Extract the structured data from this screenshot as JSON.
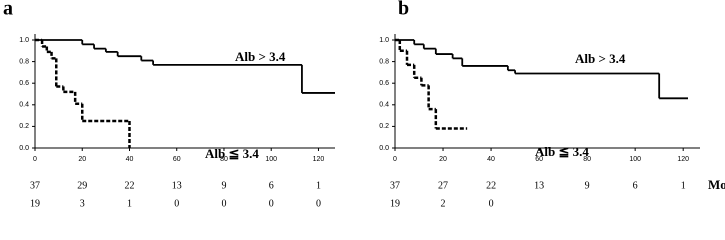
{
  "chart_data": [
    {
      "type": "step",
      "panel_label": "a",
      "xlim": [
        0,
        127
      ],
      "ylim": [
        0,
        1
      ],
      "xticks": [
        0,
        20,
        40,
        60,
        80,
        100,
        120
      ],
      "yticks": [
        {
          "value": 0,
          "label": "0.0"
        },
        {
          "value": 0.2,
          "label": "0.2"
        },
        {
          "value": 0.4,
          "label": "0.4"
        },
        {
          "value": 0.6,
          "label": "0.6"
        },
        {
          "value": 0.8,
          "label": "0.8"
        },
        {
          "value": 1,
          "label": "1.0"
        }
      ],
      "series": [
        {
          "name": "Alb > 3.4",
          "color": "#000000",
          "dashed": false,
          "x": [
            0,
            20,
            25,
            30,
            35,
            45,
            50,
            113,
            127
          ],
          "values": [
            1.0,
            0.96,
            0.92,
            0.89,
            0.85,
            0.81,
            0.77,
            0.51,
            0.51
          ]
        },
        {
          "name": "Alb ≦ 3.4",
          "color": "#000000",
          "dashed": true,
          "x": [
            0,
            3,
            5,
            7,
            9,
            12,
            17,
            20,
            40
          ],
          "values": [
            1.0,
            0.94,
            0.89,
            0.83,
            0.57,
            0.52,
            0.41,
            0.25,
            0.0
          ]
        }
      ],
      "at_risk": [
        [
          37,
          29,
          22,
          13,
          9,
          6,
          1
        ],
        [
          19,
          3,
          1,
          0,
          0,
          0,
          0
        ]
      ]
    },
    {
      "type": "step",
      "panel_label": "b",
      "xlabel": "Mo",
      "xlim": [
        0,
        127
      ],
      "ylim": [
        0,
        1
      ],
      "xticks": [
        0,
        20,
        40,
        60,
        80,
        100,
        120
      ],
      "yticks": [
        {
          "value": 0,
          "label": "0.0"
        },
        {
          "value": 0.2,
          "label": "0.2"
        },
        {
          "value": 0.4,
          "label": "0.4"
        },
        {
          "value": 0.6,
          "label": "0.6"
        },
        {
          "value": 0.8,
          "label": "0.8"
        },
        {
          "value": 1,
          "label": "1.0"
        }
      ],
      "series": [
        {
          "name": "Alb > 3.4",
          "color": "#000000",
          "dashed": false,
          "x": [
            0,
            8,
            12,
            17,
            24,
            28,
            47,
            50,
            110,
            122
          ],
          "values": [
            1.0,
            0.96,
            0.92,
            0.87,
            0.83,
            0.76,
            0.72,
            0.69,
            0.46,
            0.46
          ]
        },
        {
          "name": "Alb ≦ 3.4",
          "color": "#000000",
          "dashed": true,
          "x": [
            0,
            2,
            5,
            8,
            11,
            14,
            17,
            30
          ],
          "values": [
            1.0,
            0.9,
            0.77,
            0.65,
            0.58,
            0.36,
            0.18,
            0.18
          ]
        }
      ],
      "at_risk": [
        [
          37,
          27,
          22,
          13,
          9,
          6,
          1
        ],
        [
          19,
          2,
          0
        ]
      ]
    }
  ]
}
